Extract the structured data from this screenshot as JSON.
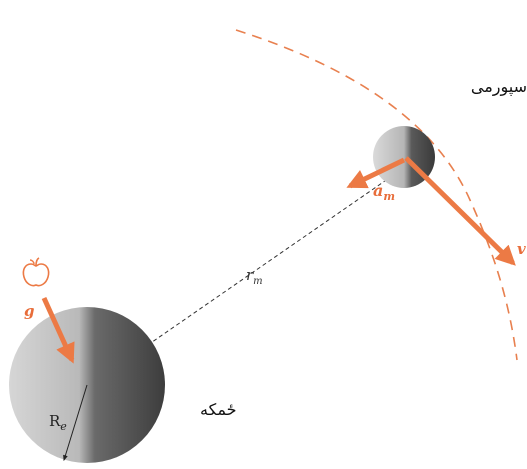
{
  "labels": {
    "moon": "سپورمی",
    "earth": "ځمکه",
    "distance": "r",
    "distance_sub": "m",
    "accel": "a",
    "accel_sub": "m",
    "velocity": "v",
    "gravity": "g",
    "radius": "R",
    "radius_sub": "e"
  },
  "colors": {
    "arrow": "#ec7a45",
    "orbit": "#e8804f",
    "sphere_dark": "#4a4a4a",
    "sphere_light": "#d8d8d8",
    "dashed_line": "#333333",
    "apple": "#ec7a45"
  },
  "icons": {
    "apple": "apple-icon"
  }
}
